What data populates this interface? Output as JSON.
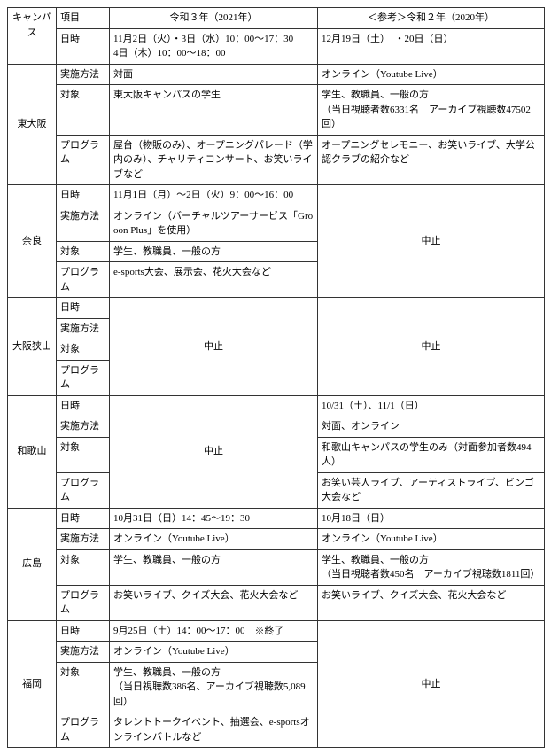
{
  "header": {
    "campus": "キャンパス",
    "item": "項目",
    "r3": "令和３年（2021年）",
    "r2": "＜参考＞令和２年（2020年）"
  },
  "items": {
    "datetime": "日時",
    "method": "実施方法",
    "target": "対象",
    "program": "プログラム"
  },
  "rows": {
    "higashiosaka": {
      "name": "東大阪",
      "r3": {
        "datetime": "11月2日（火）・3日（水）10：00～17：30\n4日（木）10：00～18：00",
        "method": "対面",
        "target": "東大阪キャンパスの学生",
        "program": "屋台（物販のみ）、オープニングパレード（学内のみ）、チャリティコンサート、お笑いライブなど"
      },
      "r2": {
        "datetime": "12月19日（土）　・20日（日）",
        "method": "オンライン（Youtube Live）",
        "target": "学生、教職員、一般の方\n（当日視聴者数6331名　アーカイブ視聴数47502回）",
        "program": "オープニングセレモニー、お笑いライブ、大学公認クラブの紹介など"
      }
    },
    "nara": {
      "name": "奈良",
      "r3": {
        "datetime": "11月1日（月）～2日（火）9：00～16：00",
        "method": "オンライン（バーチャルツアーサービス「Grooon Plus」を使用）",
        "target": "学生、教職員、一般の方",
        "program": "e-sports大会、展示会、花火大会など"
      },
      "r2": {
        "cancelled": "中止"
      }
    },
    "osakasayama": {
      "name": "大阪狭山",
      "r3": {
        "cancelled": "中止"
      },
      "r2": {
        "cancelled": "中止"
      }
    },
    "wakayama": {
      "name": "和歌山",
      "r3": {
        "cancelled": "中止"
      },
      "r2": {
        "datetime": "10/31（土）、11/1（日）",
        "method": "対面、オンライン",
        "target": "和歌山キャンパスの学生のみ（対面参加者数494人）",
        "program": "お笑い芸人ライブ、アーティストライブ、ビンゴ大会など"
      }
    },
    "hiroshima": {
      "name": "広島",
      "r3": {
        "datetime": "10月31日（日）14：45～19：30",
        "method": "オンライン（Youtube Live）",
        "target": "学生、教職員、一般の方",
        "program": "お笑いライブ、クイズ大会、花火大会など"
      },
      "r2": {
        "datetime": "10月18日（日）",
        "method": "オンライン（Youtube Live）",
        "target": "学生、教職員、一般の方\n（当日視聴者数450名　アーカイブ視聴数1811回）",
        "program": "お笑いライブ、クイズ大会、花火大会など"
      }
    },
    "fukuoka": {
      "name": "福岡",
      "r3": {
        "datetime": "9月25日（土）14：00～17：00　※終了",
        "method": "オンライン（Youtube Live）",
        "target": "学生、教職員、一般の方\n（当日視聴数386名、アーカイブ視聴数5,089回）",
        "program": "タレントトークイベント、抽選会、e-sportsオンラインバトルなど"
      },
      "r2": {
        "cancelled": "中止"
      }
    }
  }
}
